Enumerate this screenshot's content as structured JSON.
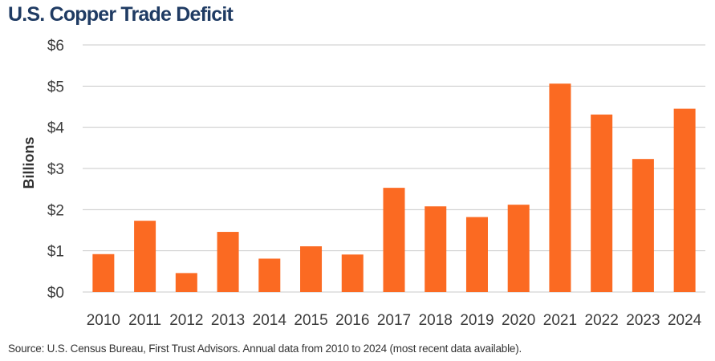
{
  "header": {
    "title": "U.S. Copper Trade Deficit"
  },
  "footer": {
    "source": "Source: U.S. Census Bureau, First Trust Advisors. Annual data from 2010 to 2024 (most recent data available)."
  },
  "colors": {
    "bar": "#fb6a22",
    "grid": "#c8c8c8",
    "title": "#1f3b63"
  },
  "chart_data": {
    "type": "bar",
    "title": "U.S. Copper Trade Deficit",
    "xlabel": "",
    "ylabel": "Billions",
    "categories": [
      "2010",
      "2011",
      "2012",
      "2013",
      "2014",
      "2015",
      "2016",
      "2017",
      "2018",
      "2019",
      "2020",
      "2021",
      "2022",
      "2023",
      "2024"
    ],
    "values": [
      0.92,
      1.73,
      0.46,
      1.46,
      0.81,
      1.11,
      0.91,
      2.53,
      2.08,
      1.82,
      2.12,
      5.06,
      4.31,
      3.23,
      4.45
    ],
    "ylim": [
      0,
      6
    ],
    "yticks": [
      0,
      1,
      2,
      3,
      4,
      5,
      6
    ],
    "ytick_labels": [
      "$0",
      "$1",
      "$2",
      "$3",
      "$4",
      "$5",
      "$6"
    ],
    "grid": true
  }
}
